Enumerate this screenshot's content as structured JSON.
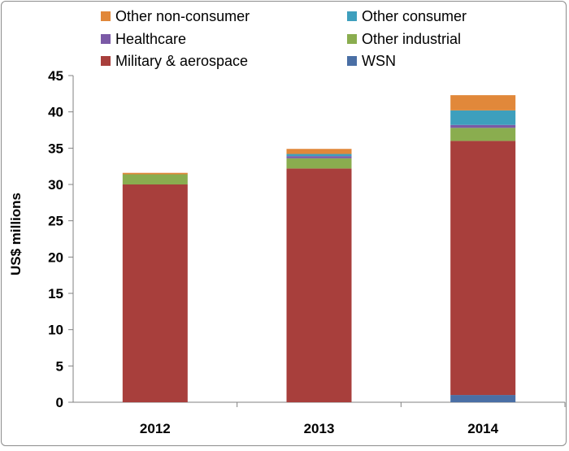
{
  "chart_data": {
    "type": "bar",
    "stacked": true,
    "title": "",
    "xlabel": "",
    "ylabel": "US$ millions",
    "ylim": [
      0,
      45
    ],
    "yticks": [
      0,
      5,
      10,
      15,
      20,
      25,
      30,
      35,
      40,
      45
    ],
    "grid": false,
    "legend_position": "top",
    "categories": [
      "2012",
      "2013",
      "2014"
    ],
    "series": [
      {
        "name": "WSN",
        "color": "#4a6fa5",
        "values": [
          0.0,
          0.0,
          1.0
        ]
      },
      {
        "name": "Military & aerospace",
        "color": "#a83f3c",
        "values": [
          30.0,
          32.2,
          35.0
        ]
      },
      {
        "name": "Other industrial",
        "color": "#8aad4f",
        "values": [
          1.4,
          1.4,
          1.8
        ]
      },
      {
        "name": "Healthcare",
        "color": "#7b5aa6",
        "values": [
          0.0,
          0.3,
          0.4
        ]
      },
      {
        "name": "Other consumer",
        "color": "#3e9fbd",
        "values": [
          0.0,
          0.3,
          2.0
        ]
      },
      {
        "name": "Other non-consumer",
        "color": "#e1883a",
        "values": [
          0.2,
          0.7,
          2.1
        ]
      }
    ],
    "legend_order": [
      "Other non-consumer",
      "Other consumer",
      "Healthcare",
      "Other industrial",
      "Military & aerospace",
      "WSN"
    ]
  }
}
